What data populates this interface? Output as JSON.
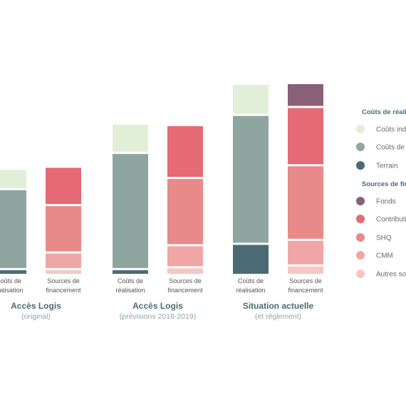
{
  "chart_data": {
    "type": "bar",
    "stacked": true,
    "colors": {
      "couts_indirects": "#e2efd8",
      "couts_de_construction": "#8fa5a0",
      "terrain": "#4a6b73",
      "fonds": "#8a6078",
      "contribution": "#e56a76",
      "shq": "#e88a8a",
      "cmm": "#f0a6a6",
      "autres_sources": "#f6c7c2",
      "group_title": "#4a6b73",
      "group_subtitle": "#8fa5a0",
      "legend_heading": "#4a6b73",
      "label_text": "#555555",
      "legend_text": "#6a6a6a"
    },
    "category_labels": {
      "costs": [
        "Coûts de",
        "réalisation"
      ],
      "sources": [
        "Sources de",
        "financement"
      ]
    },
    "groups": [
      {
        "title": "Accès Logis",
        "subtitle": "(original)",
        "bars": [
          {
            "kind": "costs",
            "segments": [
              {
                "key": "terrain",
                "value": 1
              },
              {
                "key": "couts_de_construction",
                "value": 21.5
              },
              {
                "key": "couts_indirects",
                "value": 5
              }
            ]
          },
          {
            "kind": "sources",
            "segments": [
              {
                "key": "autres_sources",
                "value": 1
              },
              {
                "key": "cmm",
                "value": 4
              },
              {
                "key": "shq",
                "value": 12.5
              },
              {
                "key": "contribution",
                "value": 10
              }
            ]
          }
        ]
      },
      {
        "title": "Accès Logis",
        "subtitle": "(prévisions 2018-2019)",
        "bars": [
          {
            "kind": "costs",
            "segments": [
              {
                "key": "terrain",
                "value": 1
              },
              {
                "key": "couts_de_construction",
                "value": 31.5
              },
              {
                "key": "couts_indirects",
                "value": 7.5
              }
            ]
          },
          {
            "kind": "sources",
            "segments": [
              {
                "key": "autres_sources",
                "value": 1.5
              },
              {
                "key": "cmm",
                "value": 5.5
              },
              {
                "key": "shq",
                "value": 18
              },
              {
                "key": "contribution",
                "value": 14
              }
            ]
          }
        ]
      },
      {
        "title": "Situation actuelle",
        "subtitle": "(et règlement)",
        "bars": [
          {
            "kind": "costs",
            "segments": [
              {
                "key": "terrain",
                "value": 8
              },
              {
                "key": "couts_de_construction",
                "value": 35
              },
              {
                "key": "couts_indirects",
                "value": 8
              }
            ]
          },
          {
            "kind": "sources",
            "segments": [
              {
                "key": "autres_sources",
                "value": 2
              },
              {
                "key": "cmm",
                "value": 6.5
              },
              {
                "key": "shq",
                "value": 20
              },
              {
                "key": "contribution",
                "value": 15.5
              },
              {
                "key": "fonds",
                "value": 6
              }
            ]
          }
        ]
      }
    ],
    "legend": {
      "position": "right",
      "sections": [
        {
          "heading": "Coûts de réalisation",
          "items": [
            {
              "key": "couts_indirects",
              "label": "Coûts indirects"
            },
            {
              "key": "couts_de_construction",
              "label": "Coûts de construction"
            },
            {
              "key": "terrain",
              "label": "Terrain"
            }
          ]
        },
        {
          "heading": "Sources de financement",
          "items": [
            {
              "key": "fonds",
              "label": "Fonds"
            },
            {
              "key": "contribution",
              "label": "Contribution"
            },
            {
              "key": "shq",
              "label": "SHQ"
            },
            {
              "key": "cmm",
              "label": "CMM"
            },
            {
              "key": "autres_sources",
              "label": "Autres sources"
            }
          ]
        }
      ]
    },
    "grid": false
  }
}
